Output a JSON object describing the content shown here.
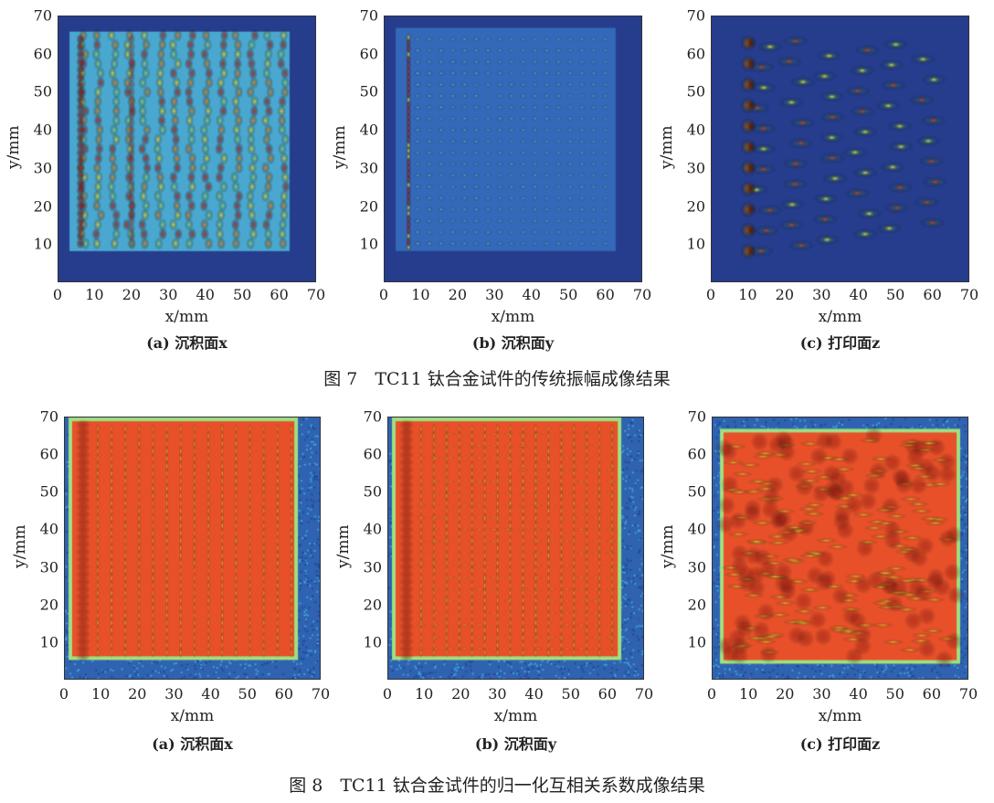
{
  "figure7": {
    "caption": "图 7　TC11 钛合金试件的传统振幅成像结果",
    "panels": [
      {
        "label": "(a) 沉积面x",
        "type": "amp-x"
      },
      {
        "label": "(b) 沉积面y",
        "type": "amp-y"
      },
      {
        "label": "(c) 打印面z",
        "type": "amp-z"
      }
    ]
  },
  "figure8": {
    "caption": "图 8　TC11 钛合金试件的归一化互相关系数成像结果",
    "panels": [
      {
        "label": "(a) 沉积面x",
        "type": "ncc-x"
      },
      {
        "label": "(b) 沉积面y",
        "type": "ncc-y"
      },
      {
        "label": "(c) 打印面z",
        "type": "ncc-z"
      }
    ]
  },
  "axes": {
    "xlabel": "x/mm",
    "ylabel": "y/mm",
    "xticks": [
      "0",
      "10",
      "20",
      "30",
      "40",
      "50",
      "60",
      "70"
    ],
    "yticks": [
      "10",
      "20",
      "30",
      "40",
      "50",
      "60",
      "70"
    ],
    "range": [
      0,
      70
    ]
  },
  "colors": {
    "background_top": "#263c8c",
    "colormap": "jet"
  }
}
